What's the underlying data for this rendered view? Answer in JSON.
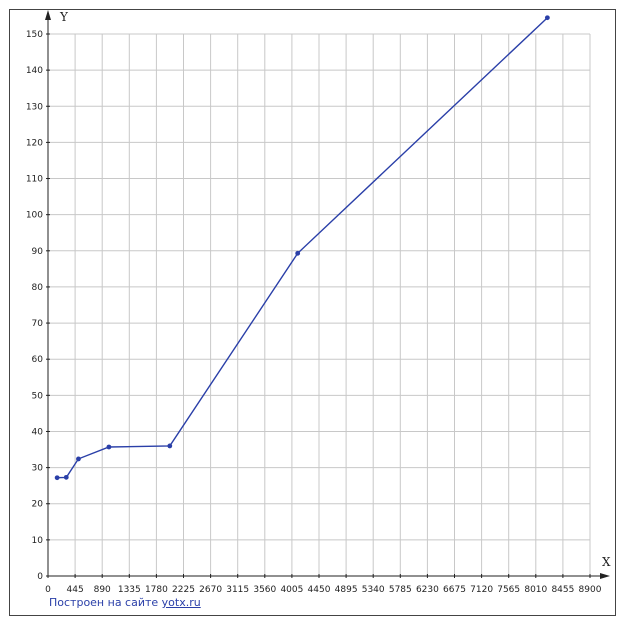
{
  "chart_data": {
    "type": "line",
    "xlabel": "X",
    "ylabel": "Y",
    "xlim": [
      0,
      8900
    ],
    "ylim": [
      0,
      150
    ],
    "x_ticks": [
      0,
      445,
      890,
      1335,
      1780,
      2225,
      2670,
      3115,
      3560,
      4005,
      4450,
      4895,
      5340,
      5785,
      6230,
      6675,
      7120,
      7565,
      8010,
      8455,
      8900
    ],
    "y_ticks": [
      0,
      10,
      20,
      30,
      40,
      50,
      60,
      70,
      80,
      90,
      100,
      110,
      120,
      130,
      140,
      150
    ],
    "grid": true,
    "series": [
      {
        "color": "#2a3fa8",
        "x": [
          150,
          300,
          500,
          1000,
          2000,
          4100,
          8200
        ],
        "y": [
          27.2,
          27.3,
          32.4,
          35.7,
          36.0,
          89.3,
          154.5
        ]
      }
    ]
  },
  "credit": {
    "text": "Построен на сайте ",
    "link": "yotx.ru"
  }
}
